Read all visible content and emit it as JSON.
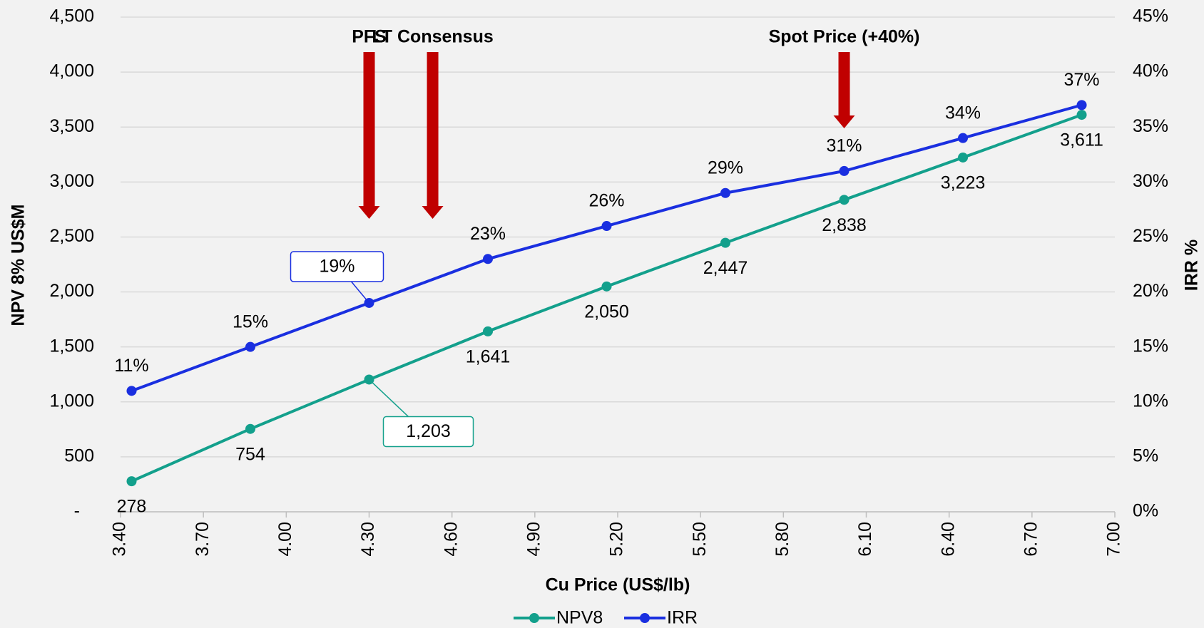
{
  "chart_data": {
    "type": "line",
    "x_label": "Cu Price (US$/lb)",
    "y_label": "NPV 8% US$M",
    "y2_label": "IRR %",
    "x": [
      3.44,
      3.87,
      4.3,
      4.73,
      5.16,
      5.59,
      6.02,
      6.45,
      6.88
    ],
    "series": [
      {
        "name": "NPV8",
        "color": "#13a08c",
        "values": [
          278,
          754,
          1203,
          1641,
          2050,
          2447,
          2838,
          3223,
          3611
        ],
        "value_labels": [
          "278",
          "754",
          "1,203",
          "1,641",
          "2,050",
          "2,447",
          "2,838",
          "3,223",
          "3,611"
        ]
      },
      {
        "name": "IRR",
        "color": "#1a2fe0",
        "axis": "y2",
        "values": [
          11,
          15,
          19,
          23,
          26,
          29,
          31,
          34,
          37
        ],
        "value_labels": [
          "11%",
          "15%",
          "19%",
          "23%",
          "26%",
          "29%",
          "31%",
          "34%",
          "37%"
        ]
      }
    ],
    "xlim": [
      3.4,
      7.0
    ],
    "xticks": [
      {
        "value": 3.4,
        "label": "3.40"
      },
      {
        "value": 3.7,
        "label": "3.70"
      },
      {
        "value": 4.0,
        "label": "4.00"
      },
      {
        "value": 4.3,
        "label": "4.30"
      },
      {
        "value": 4.6,
        "label": "4.60"
      },
      {
        "value": 4.9,
        "label": "4.90"
      },
      {
        "value": 5.2,
        "label": "5.20"
      },
      {
        "value": 5.5,
        "label": "5.50"
      },
      {
        "value": 5.8,
        "label": "5.80"
      },
      {
        "value": 6.1,
        "label": "6.10"
      },
      {
        "value": 6.4,
        "label": "6.40"
      },
      {
        "value": 6.7,
        "label": "6.70"
      },
      {
        "value": 7.0,
        "label": "7.00"
      }
    ],
    "ylim": [
      0,
      4500
    ],
    "yticks": [
      {
        "value": 0,
        "label": "-"
      },
      500,
      {
        "value": 1000,
        "label": "1,000"
      },
      {
        "value": 1500,
        "label": "1,500"
      },
      {
        "value": 2000,
        "label": "2,000"
      },
      {
        "value": 2500,
        "label": "2,500"
      },
      {
        "value": 3000,
        "label": "3,000"
      },
      {
        "value": 3500,
        "label": "3,500"
      },
      {
        "value": 4000,
        "label": "4,000"
      },
      {
        "value": 4500,
        "label": "4,500"
      }
    ],
    "y2lim": [
      0,
      45
    ],
    "y2ticks": [
      {
        "value": 0,
        "label": "0%"
      },
      {
        "value": 5,
        "label": "5%"
      },
      {
        "value": 10,
        "label": "10%"
      },
      {
        "value": 15,
        "label": "15%"
      },
      {
        "value": 20,
        "label": "20%"
      },
      {
        "value": 25,
        "label": "25%"
      },
      {
        "value": 30,
        "label": "30%"
      },
      {
        "value": 35,
        "label": "35%"
      },
      {
        "value": 40,
        "label": "40%"
      },
      {
        "value": 45,
        "label": "45%"
      }
    ],
    "grid": true,
    "legend": "bottom",
    "annotations": [
      {
        "text": "PFS",
        "x": 4.3
      },
      {
        "text": "LT Consensus",
        "x": 4.53
      },
      {
        "text": "Spot Price (+40%)",
        "x": 6.02
      }
    ],
    "annotation_color": "#c00000"
  }
}
